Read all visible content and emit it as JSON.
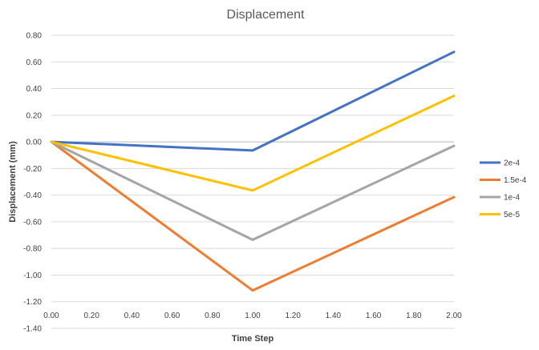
{
  "chart_data": {
    "type": "line",
    "title": "Displacement",
    "xlabel": "Time Step",
    "ylabel": "Displacement (mm)",
    "xlim": [
      0,
      2
    ],
    "ylim": [
      -1.4,
      0.8
    ],
    "x_ticks": [
      "0.00",
      "0.20",
      "0.40",
      "0.60",
      "0.80",
      "1.00",
      "1.20",
      "1.40",
      "1.60",
      "1.80",
      "2.00"
    ],
    "y_ticks": [
      "0.80",
      "0.60",
      "0.40",
      "0.20",
      "0.00",
      "-0.20",
      "-0.40",
      "-0.60",
      "-0.80",
      "-1.00",
      "-1.20",
      "-1.40"
    ],
    "x": [
      0,
      1,
      2
    ],
    "grid": true,
    "legend_position": "right",
    "series": [
      {
        "name": "2e-4",
        "color": "#4472C4",
        "values": [
          0,
          -0.065,
          0.675
        ]
      },
      {
        "name": "1.5e-4",
        "color": "#ED7D31",
        "values": [
          0,
          -1.115,
          -0.415
        ]
      },
      {
        "name": "1e-4",
        "color": "#A5A5A5",
        "values": [
          0,
          -0.735,
          -0.03
        ]
      },
      {
        "name": "5e-5",
        "color": "#FFC000",
        "values": [
          0,
          -0.365,
          0.345
        ]
      }
    ]
  }
}
